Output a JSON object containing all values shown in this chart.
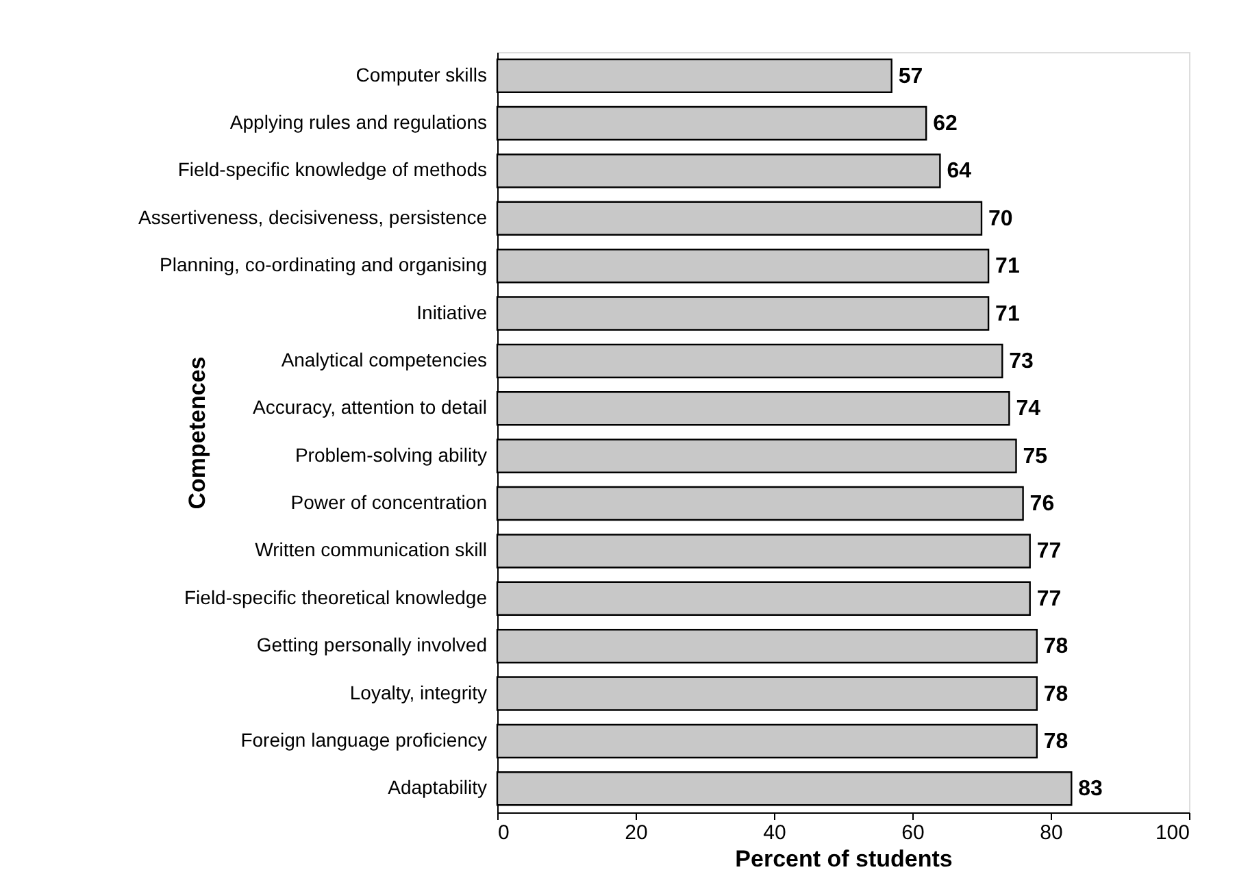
{
  "chart_data": {
    "type": "bar",
    "orientation": "horizontal",
    "xlabel": "Percent of students",
    "ylabel": "Competences",
    "categories": [
      "Computer skills",
      "Applying rules and regulations",
      "Field-specific knowledge of methods",
      "Assertiveness, decisiveness, persistence",
      "Planning, co-ordinating and organising",
      "Initiative",
      "Analytical competencies",
      "Accuracy, attention to detail",
      "Problem-solving ability",
      "Power of concentration",
      "Written communication skill",
      "Field-specific theoretical knowledge",
      "Getting personally involved",
      "Loyalty, integrity",
      "Foreign language proficiency",
      "Adaptability"
    ],
    "values": [
      57,
      62,
      64,
      70,
      71,
      71,
      73,
      74,
      75,
      76,
      77,
      77,
      78,
      78,
      78,
      83
    ],
    "color": "#c8c8c8",
    "xlim": [
      0,
      100
    ],
    "xticks": [
      0,
      20,
      40,
      60,
      80,
      100
    ],
    "grid": false,
    "data_labels": true
  }
}
